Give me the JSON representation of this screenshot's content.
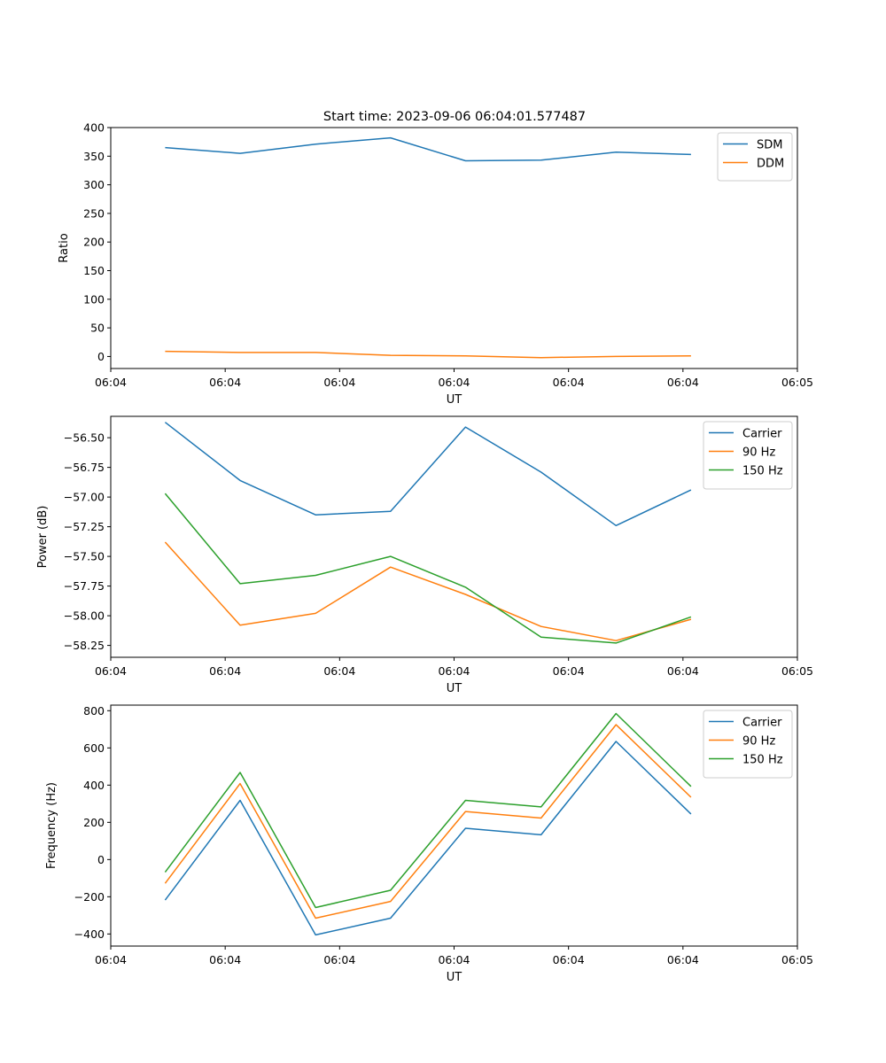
{
  "title": "Start time: 2023-09-06 06:04:01.577487",
  "chart_data": [
    {
      "type": "line",
      "title": "Start time: 2023-09-06 06:04:01.577487",
      "xlabel": "UT",
      "ylabel": "Ratio",
      "xlim": [
        0,
        12
      ],
      "ylim": [
        -21,
        400
      ],
      "x_ticks": [
        0.0,
        2.0,
        4.0,
        6.0,
        8.0,
        10.0,
        12.0
      ],
      "x_tick_labels": [
        "06:04",
        "06:04",
        "06:04",
        "06:04",
        "06:04",
        "06:04",
        "06:05"
      ],
      "y_ticks": [
        0,
        50,
        100,
        150,
        200,
        250,
        300,
        350,
        400
      ],
      "y_tick_labels": [
        "0",
        "50",
        "100",
        "150",
        "200",
        "250",
        "300",
        "350",
        "400"
      ],
      "legend_position": "top-right",
      "x": [
        0.95,
        2.26,
        3.58,
        4.89,
        6.2,
        7.52,
        8.83,
        10.14
      ],
      "series": [
        {
          "name": "SDM",
          "color": "#1f77b4",
          "values": [
            365,
            355,
            371,
            382,
            342,
            343,
            357,
            353
          ]
        },
        {
          "name": "DDM",
          "color": "#ff7f0e",
          "values": [
            9,
            7,
            7,
            2,
            1,
            -2,
            0,
            1
          ]
        }
      ]
    },
    {
      "type": "line",
      "title": "",
      "xlabel": "UT",
      "ylabel": "Power (dB)",
      "xlim": [
        0,
        12
      ],
      "ylim": [
        -58.35,
        -56.32
      ],
      "x_ticks": [
        0.0,
        2.0,
        4.0,
        6.0,
        8.0,
        10.0,
        12.0
      ],
      "x_tick_labels": [
        "06:04",
        "06:04",
        "06:04",
        "06:04",
        "06:04",
        "06:04",
        "06:05"
      ],
      "y_ticks": [
        -56.5,
        -56.75,
        -57.0,
        -57.25,
        -57.5,
        -57.75,
        -58.0,
        -58.25
      ],
      "y_tick_labels": [
        "−56.50",
        "−56.75",
        "−57.00",
        "−57.25",
        "−57.50",
        "−57.75",
        "−58.00",
        "−58.25"
      ],
      "legend_position": "top-right",
      "x": [
        0.95,
        2.26,
        3.58,
        4.89,
        6.2,
        7.52,
        8.83,
        10.14
      ],
      "series": [
        {
          "name": "Carrier",
          "color": "#1f77b4",
          "values": [
            -56.37,
            -56.86,
            -57.15,
            -57.12,
            -56.41,
            -56.79,
            -57.24,
            -56.94
          ]
        },
        {
          "name": "90 Hz",
          "color": "#ff7f0e",
          "values": [
            -57.38,
            -58.08,
            -57.98,
            -57.59,
            -57.82,
            -58.09,
            -58.21,
            -58.03
          ]
        },
        {
          "name": "150 Hz",
          "color": "#2ca02c",
          "values": [
            -56.97,
            -57.73,
            -57.66,
            -57.5,
            -57.76,
            -58.18,
            -58.23,
            -58.01
          ]
        }
      ]
    },
    {
      "type": "line",
      "title": "",
      "xlabel": "UT",
      "ylabel": "Frequency (Hz)",
      "xlim": [
        0,
        12
      ],
      "ylim": [
        -465,
        830
      ],
      "x_ticks": [
        0.0,
        2.0,
        4.0,
        6.0,
        8.0,
        10.0,
        12.0
      ],
      "x_tick_labels": [
        "06:04",
        "06:04",
        "06:04",
        "06:04",
        "06:04",
        "06:04",
        "06:05"
      ],
      "y_ticks": [
        800,
        600,
        400,
        200,
        0,
        -200,
        -400
      ],
      "y_tick_labels": [
        "800",
        "600",
        "400",
        "200",
        "0",
        "−200",
        "−400"
      ],
      "legend_position": "top-right",
      "x": [
        0.95,
        2.26,
        3.58,
        4.89,
        6.2,
        7.52,
        8.83,
        10.14
      ],
      "series": [
        {
          "name": "Carrier",
          "color": "#1f77b4",
          "values": [
            -218,
            318,
            -405,
            -315,
            168,
            133,
            635,
            245
          ]
        },
        {
          "name": "90 Hz",
          "color": "#ff7f0e",
          "values": [
            -128,
            408,
            -315,
            -225,
            258,
            223,
            725,
            335
          ]
        },
        {
          "name": "150 Hz",
          "color": "#2ca02c",
          "values": [
            -68,
            468,
            -258,
            -165,
            318,
            283,
            785,
            393
          ]
        }
      ]
    }
  ]
}
